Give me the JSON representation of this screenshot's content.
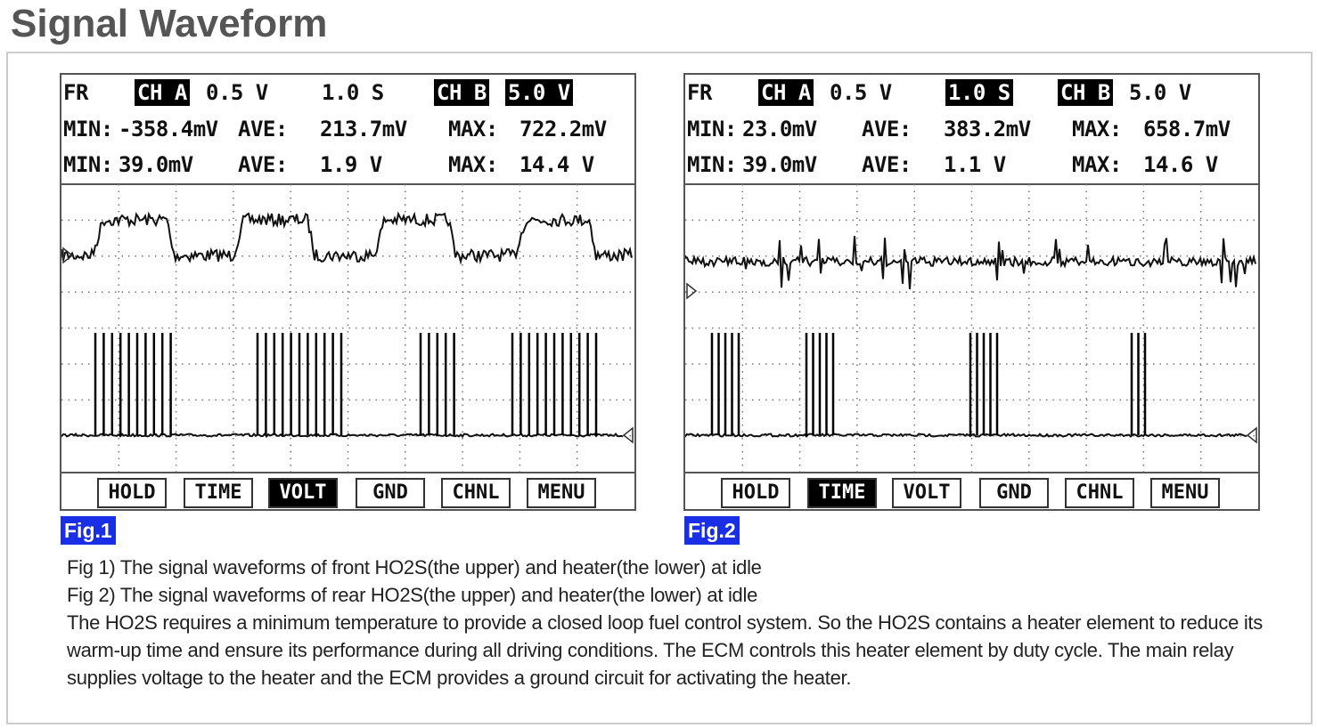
{
  "page_title": "Signal Waveform",
  "figures": [
    {
      "label": "Fig.1",
      "header": {
        "mode": "FR",
        "ch_a": "CH A",
        "ch_a_scale": "0.5 V",
        "time": "1.0 S",
        "ch_b": "CH B",
        "ch_b_scale": "5.0 V",
        "a_min_label": "MIN:",
        "a_min": "-358.4mV",
        "a_ave_label": "AVE:",
        "a_ave": "213.7mV",
        "a_max_label": "MAX:",
        "a_max": "722.2mV",
        "b_min_label": "MIN:",
        "b_min": "39.0mV",
        "b_ave_label": "AVE:",
        "b_ave": "1.9 V",
        "b_max_label": "MAX:",
        "b_max": "14.4 V"
      },
      "highlight": "ch_b_scale",
      "active_button": "VOLT"
    },
    {
      "label": "Fig.2",
      "header": {
        "mode": "FR",
        "ch_a": "CH A",
        "ch_a_scale": "0.5 V",
        "time": "1.0 S",
        "ch_b": "CH B",
        "ch_b_scale": "5.0 V",
        "a_min_label": "MIN:",
        "a_min": "23.0mV",
        "a_ave_label": "AVE:",
        "a_ave": "383.2mV",
        "a_max_label": "MAX:",
        "a_max": "658.7mV",
        "b_min_label": "MIN:",
        "b_min": "39.0mV",
        "b_ave_label": "AVE:",
        "b_ave": "1.1 V",
        "b_max_label": "MAX:",
        "b_max": "14.6 V"
      },
      "highlight": "time",
      "active_button": "TIME"
    }
  ],
  "buttons": [
    "HOLD",
    "TIME",
    "VOLT",
    "GND",
    "CHNL",
    "MENU"
  ],
  "caption": {
    "line1": "Fig 1) The signal waveforms of front HO2S(the upper) and heater(the lower) at idle",
    "line2": "Fig 2) The signal waveforms of rear HO2S(the upper) and heater(the lower) at idle",
    "body": "The HO2S requires a minimum temperature to provide a closed loop fuel control system. So the HO2S contains a heater element to reduce its warm-up time and ensure its performance during all driving conditions. The ECM controls this heater element by duty cycle. The main relay supplies voltage to the heater and the ECM provides a ground circuit for activating the heater."
  },
  "colors": {
    "fig_label_bg": "#1a2ee6",
    "title": "#555555"
  }
}
